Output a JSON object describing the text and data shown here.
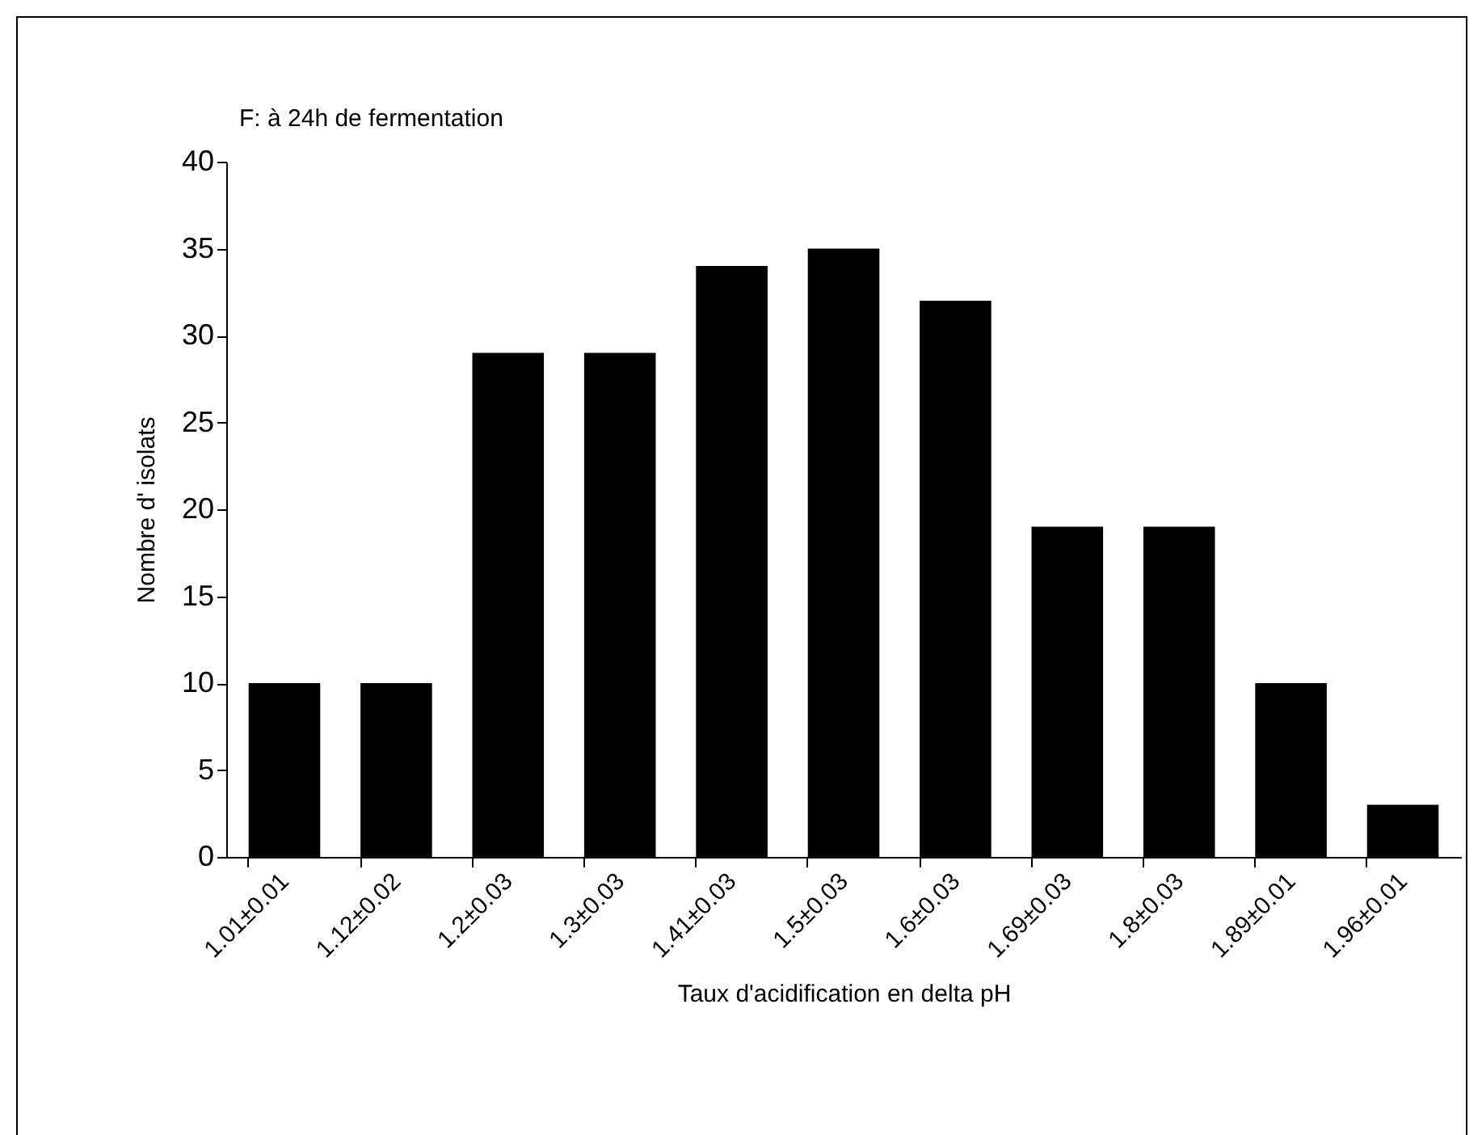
{
  "chart_data": {
    "type": "bar",
    "title": "F: à 24h de fermentation",
    "xlabel": "Taux d'acidification en delta pH",
    "ylabel": "Nombre d' isolats",
    "categories": [
      "1.01±0.01",
      "1.12±0.02",
      "1.2±0.03",
      "1.3±0.03",
      "1.41±0.03",
      "1.5±0.03",
      "1.6±0.03",
      "1.69±0.03",
      "1.8±0.03",
      "1.89±0.01",
      "1.96±0.01"
    ],
    "values": [
      10,
      10,
      29,
      29,
      34,
      35,
      32,
      19,
      19,
      10,
      3
    ],
    "color": "#000000",
    "ylim": [
      0,
      40
    ],
    "yticks": [
      0,
      5,
      10,
      15,
      20,
      25,
      30,
      35,
      40
    ],
    "grid": false
  }
}
